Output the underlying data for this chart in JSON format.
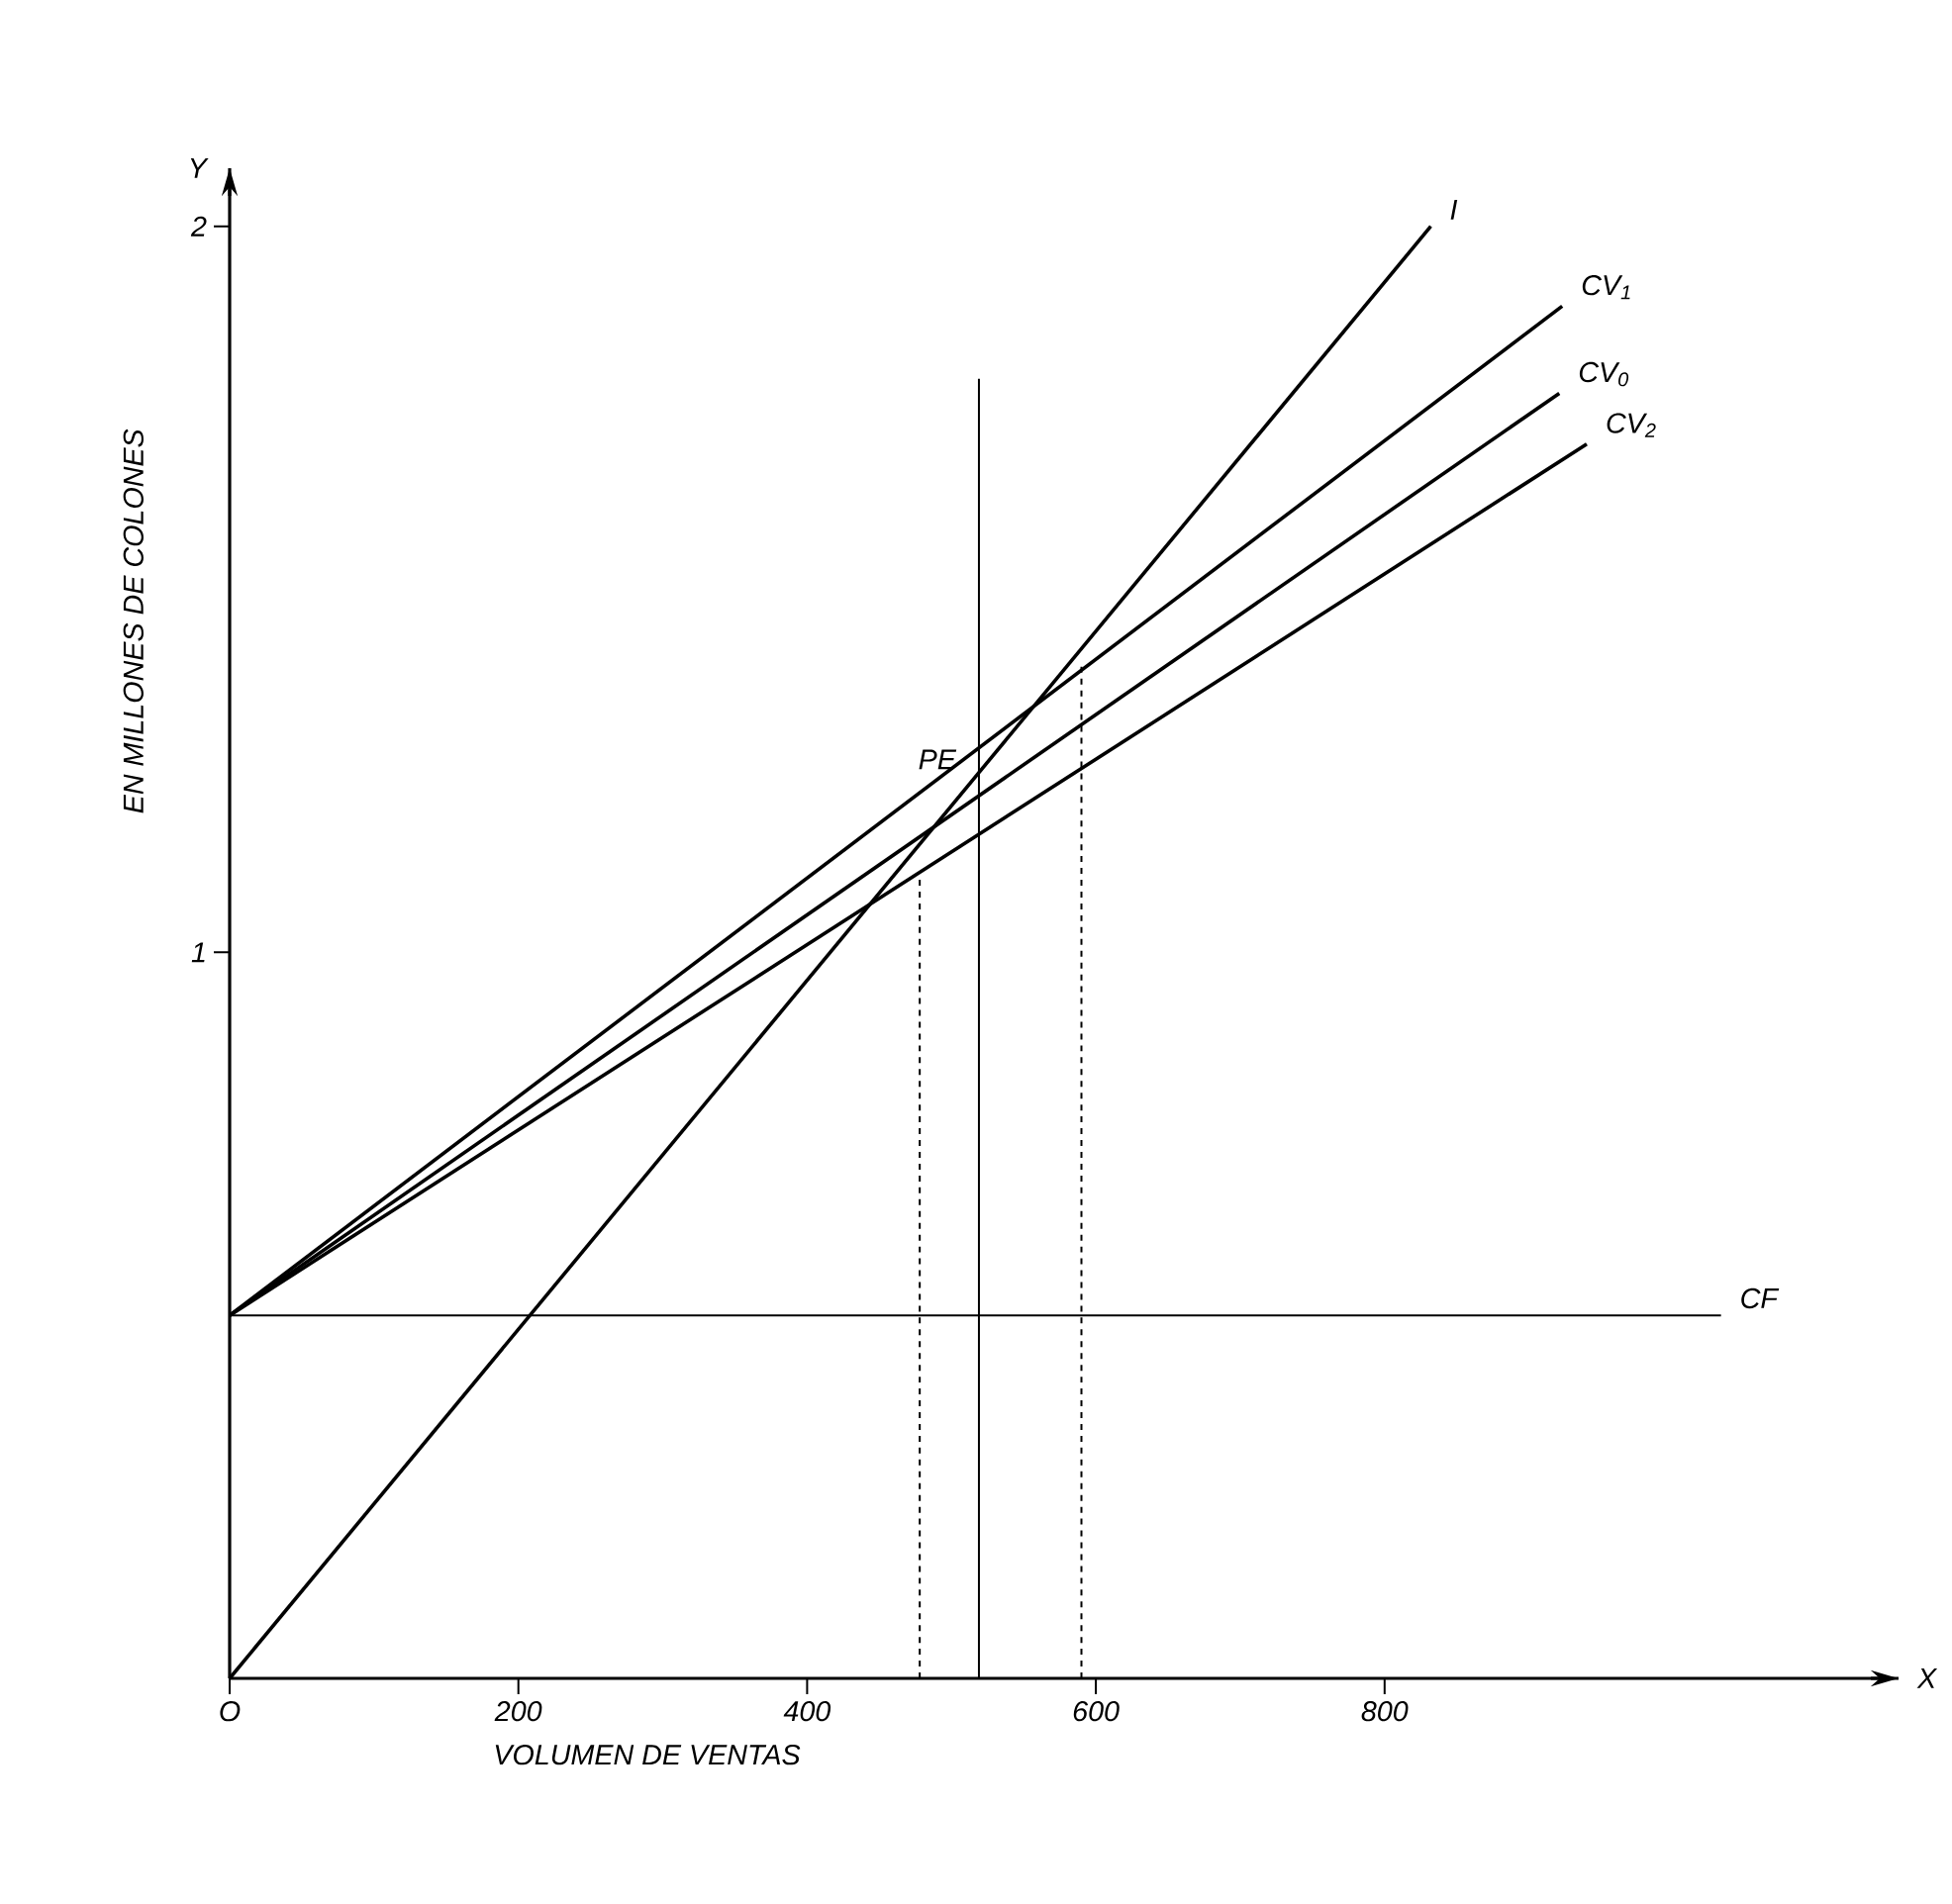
{
  "chart_data": {
    "type": "line",
    "xlabel": "VOLUMEN DE VENTAS",
    "ylabel": "EN MILLONES DE COLONES",
    "xlim": [
      0,
      1156
    ],
    "ylim": [
      0,
      2.08
    ],
    "xticks": [
      {
        "value": 0,
        "label": "O"
      },
      200,
      400,
      600,
      800
    ],
    "yticks": [
      1,
      2
    ],
    "grid": false,
    "legend": false,
    "marker": "none",
    "annotations": [
      "Y",
      "X",
      {
        "text": "PE",
        "x": 519,
        "y": 1.21
      }
    ],
    "series": [
      {
        "name": "I",
        "color": "#000000",
        "x": [
          0,
          832
        ],
        "values": [
          0,
          2.0
        ],
        "line_style": "solid"
      },
      {
        "name": "CV$_{1}$",
        "color": "#000000",
        "x": [
          0,
          923
        ],
        "values": [
          0.5,
          1.89
        ],
        "line_style": "solid"
      },
      {
        "name": "CV$_{0}$",
        "color": "#000000",
        "x": [
          0,
          921
        ],
        "values": [
          0.5,
          1.77
        ],
        "line_style": "solid"
      },
      {
        "name": "CV$_{2}$",
        "color": "#000000",
        "x": [
          0,
          940
        ],
        "values": [
          0.5,
          1.7
        ],
        "line_style": "solid"
      },
      {
        "name": "CF",
        "color": "#000000",
        "x": [
          0,
          1033
        ],
        "values": [
          0.5,
          0.5
        ],
        "line_style": "solid"
      },
      {
        "color": "#000000",
        "x": [
          519,
          519
        ],
        "values": [
          0,
          1.79
        ],
        "line_style": "solid"
      },
      {
        "color": "#000000",
        "x": [
          478,
          478
        ],
        "values": [
          0,
          1.1
        ],
        "line_style": "dashed"
      },
      {
        "color": "#000000",
        "x": [
          590,
          590
        ],
        "values": [
          0,
          1.4
        ],
        "line_style": "dashed"
      }
    ]
  }
}
